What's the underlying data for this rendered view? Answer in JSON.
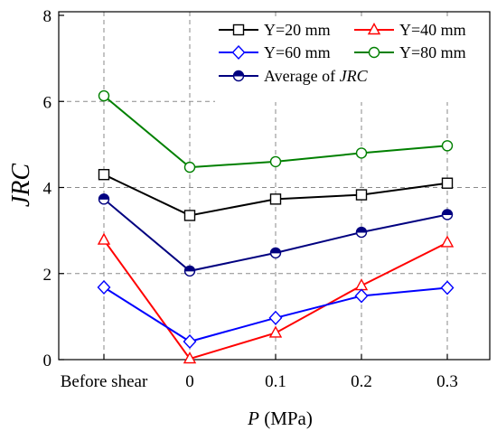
{
  "chart_data": {
    "type": "line",
    "categories": [
      "Before shear",
      "0",
      "0.1",
      "0.2",
      "0.3"
    ],
    "xlabel": {
      "var": "P",
      "unit": " (MPa)"
    },
    "ylabel": "JRC",
    "ylim": [
      0,
      8
    ],
    "yticks": [
      0,
      2,
      4,
      6,
      8
    ],
    "grid": true,
    "legend_position": "top-right",
    "series": [
      {
        "name": "Y=20 mm",
        "color": "#000000",
        "marker": "square",
        "values": [
          4.3,
          3.35,
          3.73,
          3.83,
          4.1
        ]
      },
      {
        "name": "Y=40 mm",
        "color": "#ff0000",
        "marker": "triangle",
        "values": [
          2.78,
          0.02,
          0.62,
          1.72,
          2.72
        ]
      },
      {
        "name": "Y=60 mm",
        "color": "#0000ff",
        "marker": "diamond",
        "values": [
          1.68,
          0.42,
          0.97,
          1.48,
          1.67
        ]
      },
      {
        "name": "Y=80 mm",
        "color": "#008000",
        "marker": "circle-open",
        "values": [
          6.13,
          4.47,
          4.6,
          4.8,
          4.97
        ]
      },
      {
        "name": "Average of JRC",
        "name_parts": [
          "Average of ",
          "JRC"
        ],
        "color": "#000080",
        "marker": "circle-half",
        "values": [
          3.73,
          2.06,
          2.48,
          2.96,
          3.37
        ]
      }
    ]
  }
}
